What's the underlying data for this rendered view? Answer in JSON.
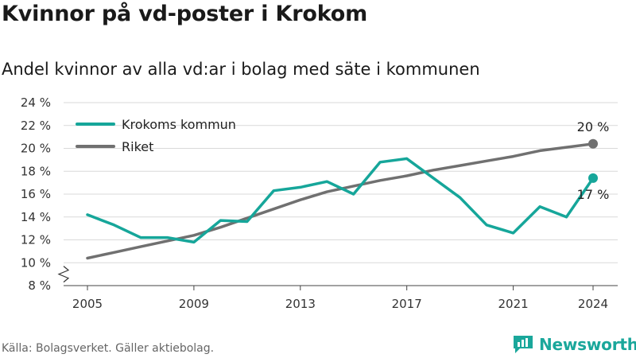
{
  "title": "Kvinnor på vd-poster i Krokom",
  "subtitle": "Andel kvinnor av alla vd:ar i bolag med säte i kommunen",
  "source": "Källa: Bolagsverket. Gäller aktiebolag.",
  "brand": "Newsworthy",
  "colors": {
    "krokom": "#16a69a",
    "riket": "#707070",
    "grid": "#d9d9d9",
    "brand": "#1aa79b"
  },
  "chart_data": {
    "type": "line",
    "title": "Kvinnor på vd-poster i Krokom",
    "xlabel": "",
    "ylabel": "",
    "xlim": [
      2005,
      2024
    ],
    "ylim": [
      8,
      24
    ],
    "y_ticks": [
      8,
      10,
      12,
      14,
      16,
      18,
      20,
      22,
      24
    ],
    "y_tick_labels": [
      "8 %",
      "10 %",
      "12 %",
      "14 %",
      "16 %",
      "18 %",
      "20 %",
      "22 %",
      "24 %"
    ],
    "x_ticks": [
      2005,
      2009,
      2013,
      2017,
      2021,
      2024
    ],
    "x_tick_labels": [
      "2005",
      "2009",
      "2013",
      "2017",
      "2021",
      "2024"
    ],
    "axis_break": true,
    "grid": true,
    "legend_position": "top-left",
    "x": [
      2005,
      2006,
      2007,
      2008,
      2009,
      2010,
      2011,
      2012,
      2013,
      2014,
      2015,
      2016,
      2017,
      2018,
      2019,
      2020,
      2021,
      2022,
      2023,
      2024
    ],
    "series": [
      {
        "name": "Krokoms kommun",
        "color": "#16a69a",
        "values": [
          14.2,
          13.3,
          12.2,
          12.2,
          11.8,
          13.7,
          13.6,
          16.3,
          16.6,
          17.1,
          16.0,
          18.8,
          19.1,
          17.4,
          15.7,
          13.3,
          12.6,
          14.9,
          14.0,
          17.4
        ],
        "end_label": "17 %"
      },
      {
        "name": "Riket",
        "color": "#707070",
        "values": [
          10.4,
          10.9,
          11.4,
          11.9,
          12.4,
          13.1,
          13.9,
          14.7,
          15.5,
          16.2,
          16.7,
          17.2,
          17.6,
          18.1,
          18.5,
          18.9,
          19.3,
          19.8,
          20.1,
          20.4
        ],
        "end_label": "20 %"
      }
    ]
  }
}
